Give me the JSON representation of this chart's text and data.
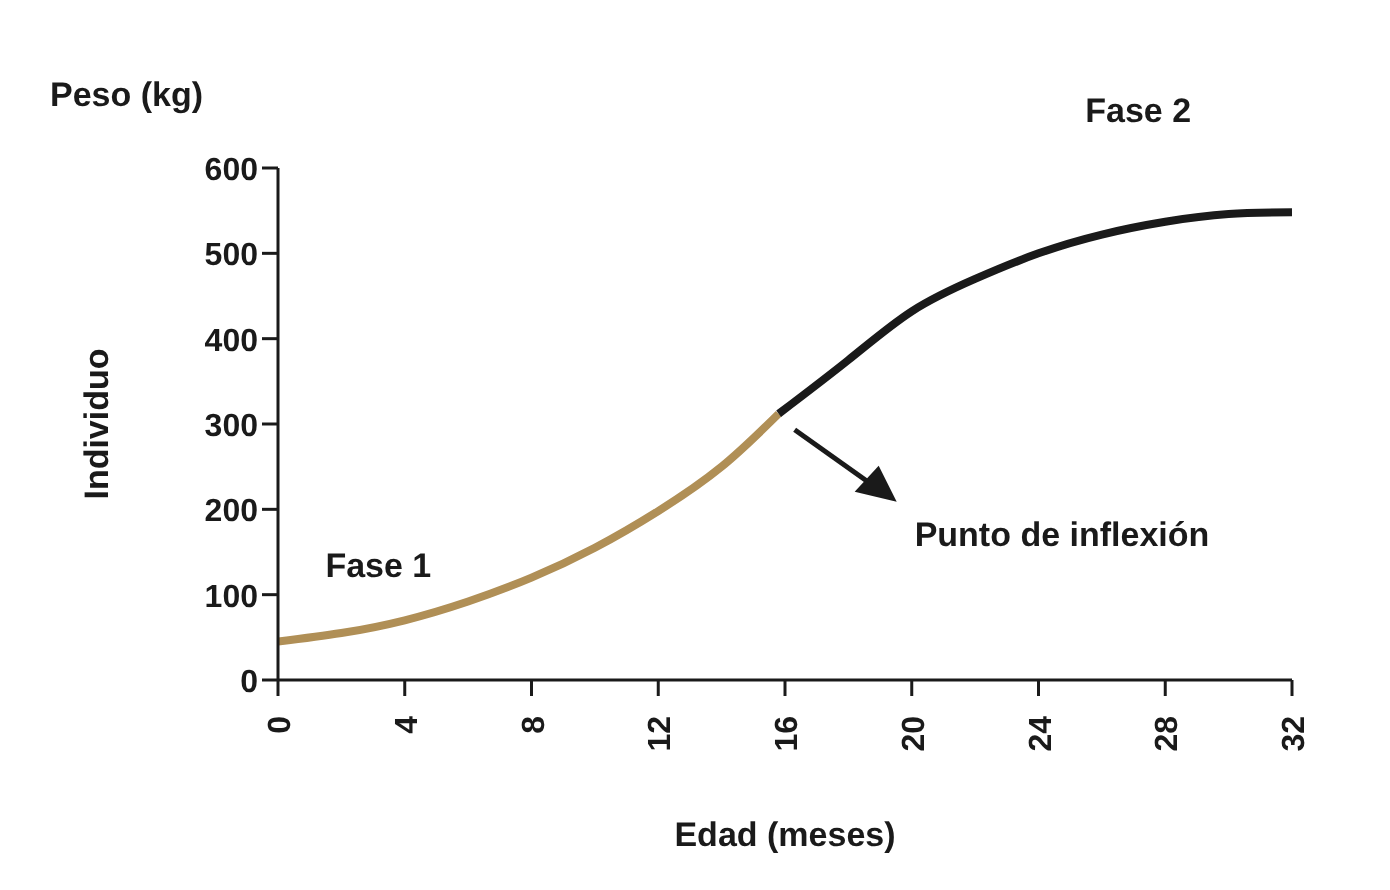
{
  "chart_data": {
    "type": "line",
    "title": "Peso (kg)",
    "xlabel": "Edad (meses)",
    "ylabel": "Individuo",
    "xlim": [
      0,
      32
    ],
    "xticks": [
      0,
      4,
      8,
      12,
      16,
      20,
      24,
      28,
      32
    ],
    "ylim": [
      0,
      600
    ],
    "yticks": [
      0,
      100,
      200,
      300,
      400,
      500,
      600
    ],
    "marker": "none",
    "line_style": "solid",
    "series": [
      {
        "name": "Fase 1",
        "color": "#b08f56",
        "x": [
          0,
          2,
          4,
          6,
          8,
          10,
          12,
          14,
          15.8
        ],
        "values": [
          45,
          55,
          70,
          92,
          120,
          155,
          198,
          250,
          312
        ]
      },
      {
        "name": "Fase 2",
        "color": "#1a1a1a",
        "x": [
          15.8,
          18,
          20,
          22,
          24,
          26,
          28,
          30,
          32
        ],
        "values": [
          312,
          375,
          432,
          470,
          500,
          522,
          537,
          546,
          548
        ]
      }
    ],
    "annotations": [
      "Punto de inflexión"
    ]
  }
}
